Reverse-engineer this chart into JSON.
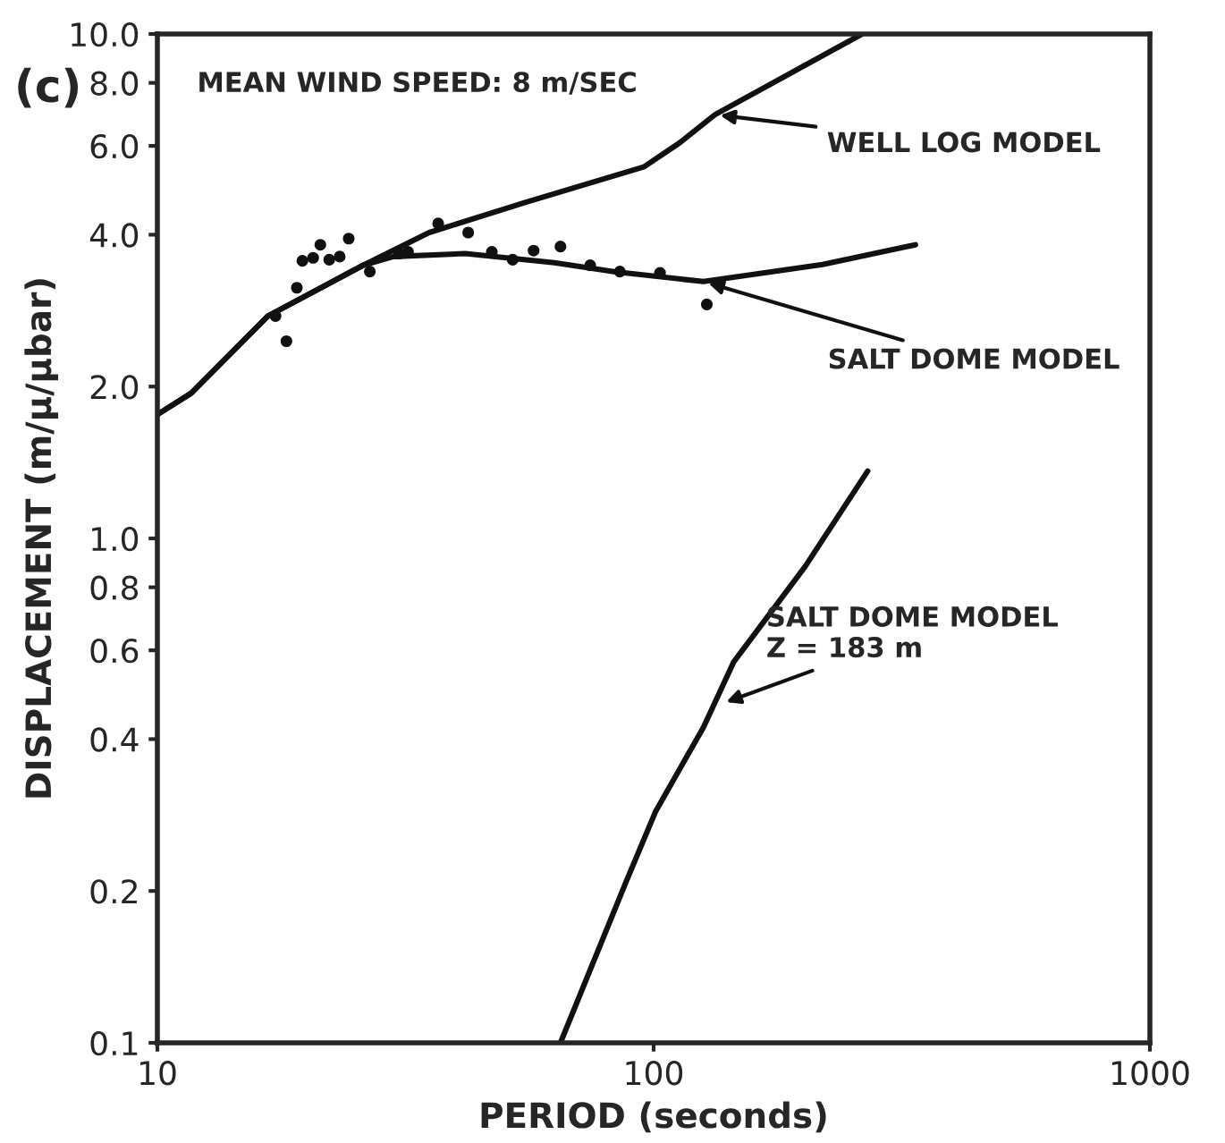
{
  "chart_data": {
    "type": "line",
    "xlabel": "PERIOD (seconds)",
    "ylabel": "DISPLACEMENT (m/μ/μbar)",
    "log": "xy",
    "grid": false,
    "xlim": [
      10,
      1000
    ],
    "xticks": [
      10,
      100,
      1000
    ],
    "ylim": [
      0.1,
      10
    ],
    "yticks": [
      {
        "value": 0.1,
        "label": "0.1"
      },
      {
        "value": 0.2,
        "label": "0.2"
      },
      {
        "value": 0.4,
        "label": "0.4"
      },
      {
        "value": 0.6,
        "label": "0.6"
      },
      {
        "value": 0.8,
        "label": "0.8"
      },
      {
        "value": 1,
        "label": "1.0"
      },
      {
        "value": 2,
        "label": "2.0"
      },
      {
        "value": 4,
        "label": "4.0"
      },
      {
        "value": 6,
        "label": "6.0"
      },
      {
        "value": 8,
        "label": "8.0"
      },
      {
        "value": 10,
        "label": "10.0"
      }
    ],
    "series": [
      {
        "color": "#111111",
        "marker": "none",
        "x": [
          10,
          11.7,
          16.7,
          26,
          35.3,
          54.9,
          95.5,
          112.7,
          133,
          263
        ],
        "values": [
          1.76,
          1.94,
          2.76,
          3.48,
          4.04,
          4.63,
          5.45,
          6.08,
          6.92,
          10
        ]
      },
      {
        "color": "#111111",
        "marker": "none",
        "x": [
          10,
          11.7,
          16.7,
          26,
          29.9,
          41.7,
          63.1,
          83.2,
          126,
          219,
          337
        ],
        "values": [
          1.76,
          1.94,
          2.76,
          3.48,
          3.62,
          3.67,
          3.52,
          3.38,
          3.23,
          3.49,
          3.82
        ]
      },
      {
        "color": "#111111",
        "marker": "none",
        "x": [
          64.9,
          87.9,
          101,
          126,
          145,
          202,
          270
        ],
        "values": [
          0.1,
          0.208,
          0.288,
          0.422,
          0.569,
          0.88,
          1.36
        ]
      },
      {
        "type": "scatter",
        "color": "#111111",
        "marker": "circle",
        "x": [
          17.3,
          18.2,
          19.1,
          19.6,
          20.6,
          21.3,
          22.2,
          23.3,
          24.3,
          26.8,
          30.7,
          32,
          36.8,
          42.3,
          47.2,
          52,
          57.3,
          64.9,
          74.5,
          85.5,
          103,
          128
        ],
        "values": [
          2.76,
          2.46,
          3.14,
          3.55,
          3.6,
          3.82,
          3.57,
          3.62,
          3.93,
          3.38,
          3.67,
          3.7,
          4.21,
          4.04,
          3.7,
          3.57,
          3.72,
          3.79,
          3.48,
          3.38,
          3.36,
          2.91
        ]
      }
    ],
    "annotations": [
      "(c)",
      "MEAN WIND SPEED: 8 m/SEC",
      {
        "text": "WELL LOG MODEL",
        "x": 133,
        "y": 6.92
      },
      {
        "text": "SALT DOME MODEL",
        "x": 126,
        "y": 3.23
      },
      {
        "text": "SALT DOME MODEL\nZ = 183 m",
        "x": 137,
        "y": 0.47
      }
    ]
  }
}
